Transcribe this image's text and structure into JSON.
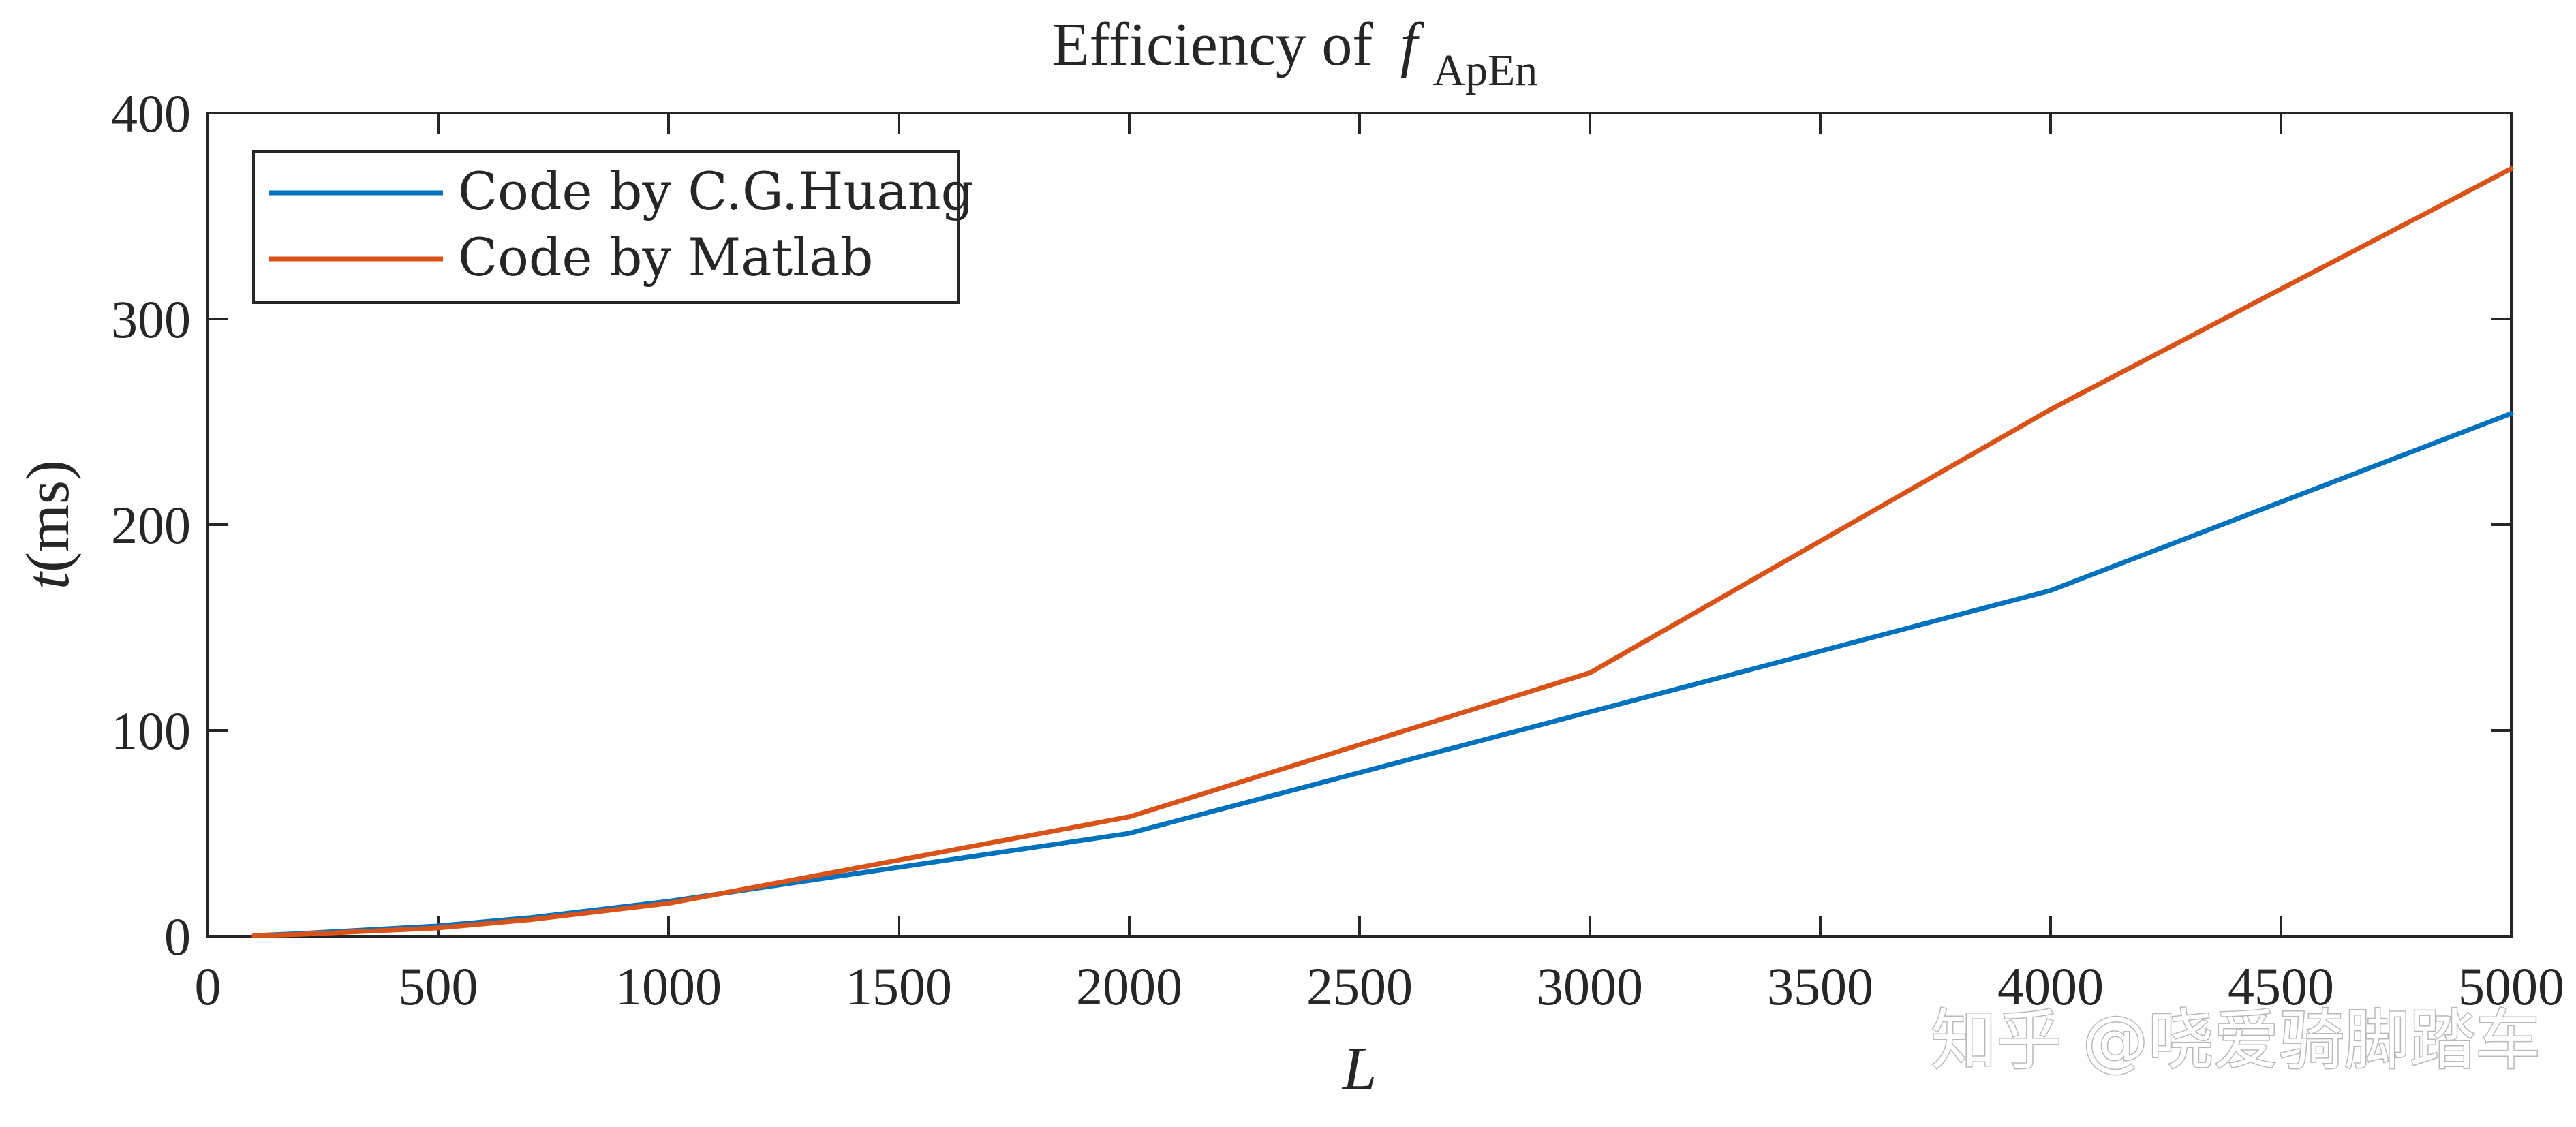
{
  "chart_data": {
    "type": "line",
    "title_prefix": "Efficiency of",
    "title_symbol": "f",
    "title_subscript": "ApEn",
    "xlabel": "L",
    "ylabel_italic": "t",
    "ylabel_rest": "(ms)",
    "xlim": [
      0,
      5000
    ],
    "ylim": [
      0,
      400
    ],
    "xticks": [
      0,
      500,
      1000,
      1500,
      2000,
      2500,
      3000,
      3500,
      4000,
      4500,
      5000
    ],
    "yticks": [
      0,
      100,
      200,
      300,
      400
    ],
    "grid": false,
    "legend_position": "top-left",
    "series": [
      {
        "name": "Code by C.G.Huang",
        "color": "#0072BD",
        "x": [
          100,
          200,
          500,
          700,
          1000,
          2000,
          3000,
          4000,
          5000
        ],
        "y": [
          0.3,
          1.3,
          5,
          9,
          17,
          50,
          109,
          168,
          254
        ]
      },
      {
        "name": "Code by Matlab",
        "color": "#D95319",
        "x": [
          100,
          200,
          500,
          700,
          1000,
          2000,
          3000,
          4000,
          5000
        ],
        "y": [
          0.2,
          0.9,
          4,
          8,
          16,
          58,
          128,
          256,
          373
        ]
      }
    ]
  },
  "watermark": "知乎 @哓爱骑脚踏车"
}
